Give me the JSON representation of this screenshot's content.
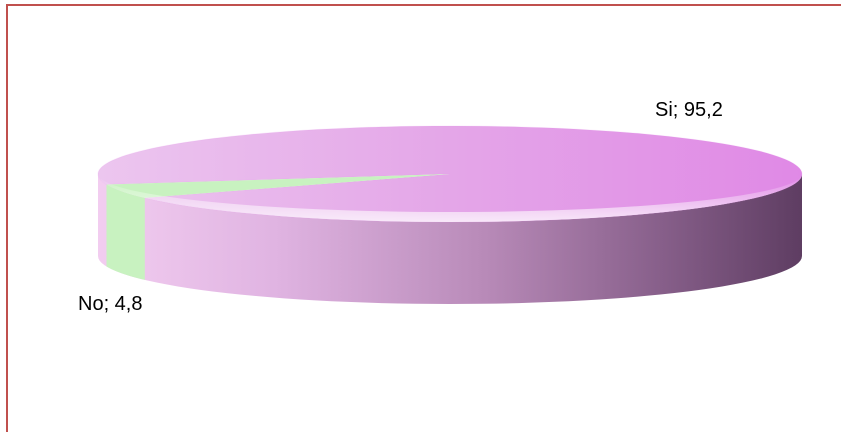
{
  "colors": {
    "frame": "#c0504d",
    "si": "#e38ee8",
    "no": "#c8f2c0"
  },
  "chart_data": {
    "type": "pie",
    "style": "3d",
    "slices": [
      {
        "name": "Si",
        "value": 95.2,
        "label": "Si; 95,2"
      },
      {
        "name": "No",
        "value": 4.8,
        "label": "No; 4,8"
      }
    ]
  }
}
